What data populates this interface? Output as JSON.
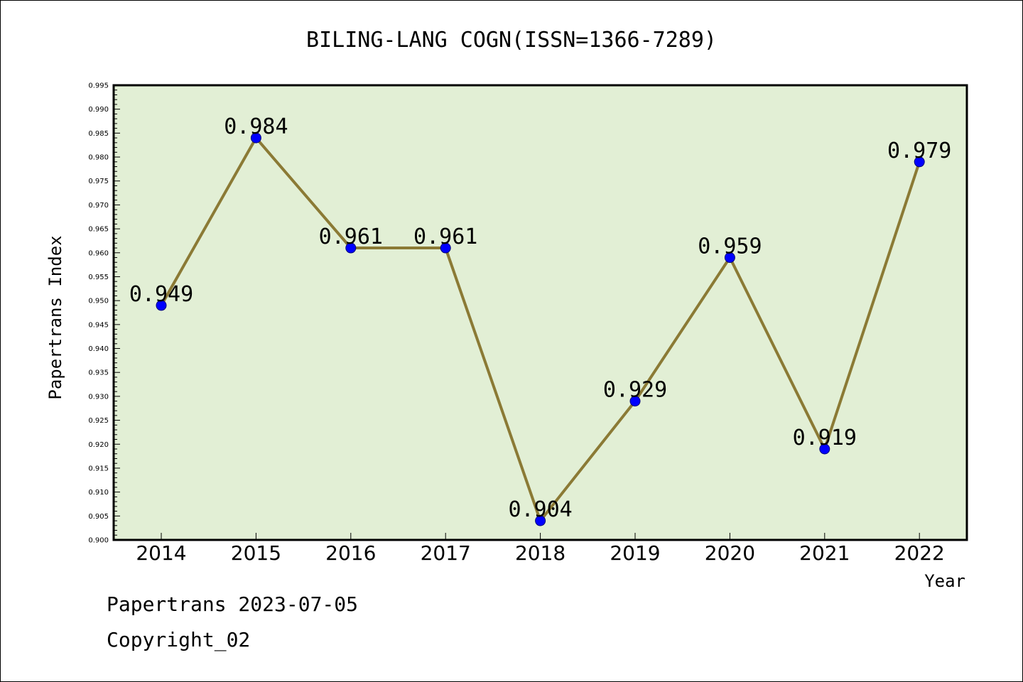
{
  "chart_data": {
    "type": "line",
    "title": "BILING-LANG COGN(ISSN=1366-7289)",
    "xlabel": "Year",
    "ylabel": "Papertrans Index",
    "ylim": [
      0.9,
      0.995
    ],
    "ytick_step": 0.005,
    "categories": [
      "2014",
      "2015",
      "2016",
      "2017",
      "2018",
      "2019",
      "2020",
      "2021",
      "2022"
    ],
    "values": [
      0.949,
      0.984,
      0.961,
      0.961,
      0.904,
      0.929,
      0.959,
      0.919,
      0.979
    ],
    "data_labels": [
      "0.949",
      "0.984",
      "0.961",
      "0.961",
      "0.904",
      "0.929",
      "0.959",
      "0.919",
      "0.979"
    ],
    "grid": false,
    "colors": {
      "plot_background": "#e2efd5",
      "line": "#8b7a35",
      "marker": "#0000ff"
    }
  },
  "footer": {
    "line1": "Papertrans 2023-07-05",
    "line2": "Copyright_02"
  }
}
